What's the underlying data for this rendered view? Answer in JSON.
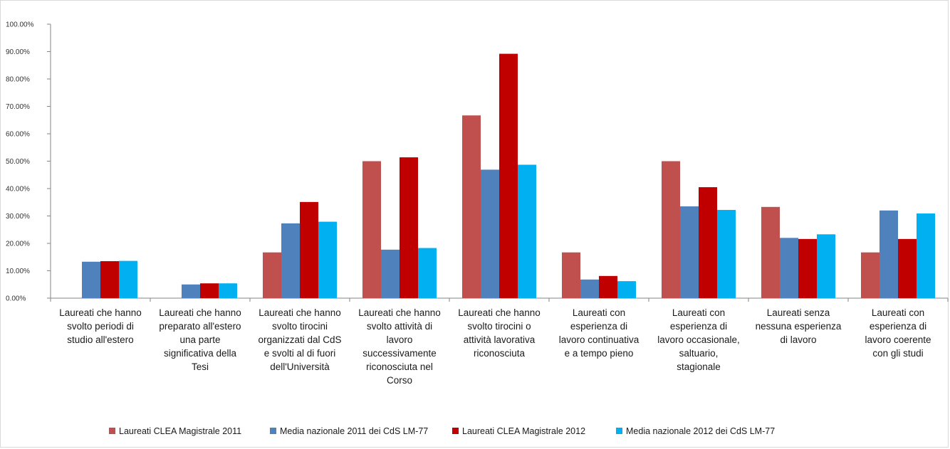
{
  "chart_data": {
    "type": "bar",
    "title": "",
    "xlabel": "",
    "ylabel": "",
    "ylim": [
      0,
      100
    ],
    "y_ticks": [
      "0.00%",
      "10.00%",
      "20.00%",
      "30.00%",
      "40.00%",
      "50.00%",
      "60.00%",
      "70.00%",
      "80.00%",
      "90.00%",
      "100.00%"
    ],
    "grid": false,
    "legend_position": "bottom",
    "categories": [
      "Laureati che hanno svolto periodi di studio all'estero",
      "Laureati che hanno preparato all'estero una parte significativa della Tesi",
      "Laureati che hanno svolto tirocini organizzati dal CdS e svolti al di fuori dell'Università",
      "Laureati che hanno svolto attività di lavoro successivamente riconosciuta nel Corso",
      "Laureati che hanno svolto tirocini o attività lavorativa riconosciuta",
      "Laureati con esperienza di lavoro continuativa e a tempo pieno",
      "Laureati con esperienza di lavoro occasionale, saltuario, stagionale",
      "Laureati senza nessuna esperienza di lavoro",
      "Laureati con esperienza di lavoro coerente con gli studi"
    ],
    "category_lines": [
      [
        "Laureati che hanno",
        "svolto periodi di",
        "studio all'estero"
      ],
      [
        "Laureati che hanno",
        "preparato all'estero",
        "una parte",
        "significativa della",
        "Tesi"
      ],
      [
        "Laureati che hanno",
        "svolto tirocini",
        "organizzati dal CdS",
        "e svolti al di fuori",
        "dell'Università"
      ],
      [
        "Laureati che hanno",
        "svolto attività di",
        "lavoro",
        "successivamente",
        "riconosciuta nel",
        "Corso"
      ],
      [
        "Laureati che hanno",
        "svolto tirocini o",
        "attività lavorativa",
        "riconosciuta"
      ],
      [
        "Laureati con",
        "esperienza di",
        "lavoro continuativa",
        "e a tempo pieno"
      ],
      [
        "Laureati con",
        "esperienza di",
        "lavoro occasionale,",
        "saltuario,",
        "stagionale"
      ],
      [
        "Laureati senza",
        "nessuna esperienza",
        "di lavoro"
      ],
      [
        "Laureati con",
        "esperienza di",
        "lavoro coerente",
        "con gli studi"
      ]
    ],
    "series": [
      {
        "name": "Laureati CLEA Magistrale 2011",
        "color": "#c0504d",
        "values": [
          0,
          0,
          16.7,
          50.0,
          66.7,
          16.7,
          50.0,
          33.3,
          16.7
        ]
      },
      {
        "name": "Media nazionale 2011 dei CdS LM-77",
        "color": "#4f81bd",
        "values": [
          13.3,
          5.0,
          27.3,
          17.7,
          46.9,
          6.8,
          33.5,
          22.0,
          32.0
        ]
      },
      {
        "name": "Laureati CLEA Magistrale 2012",
        "color": "#c00000",
        "values": [
          13.5,
          5.4,
          35.1,
          51.4,
          89.2,
          8.1,
          40.5,
          21.6,
          21.6
        ]
      },
      {
        "name": "Media nazionale 2012 dei CdS LM-77",
        "color": "#00b0f0",
        "values": [
          13.6,
          5.4,
          27.9,
          18.3,
          48.7,
          6.2,
          32.2,
          23.3,
          30.9
        ]
      }
    ]
  }
}
